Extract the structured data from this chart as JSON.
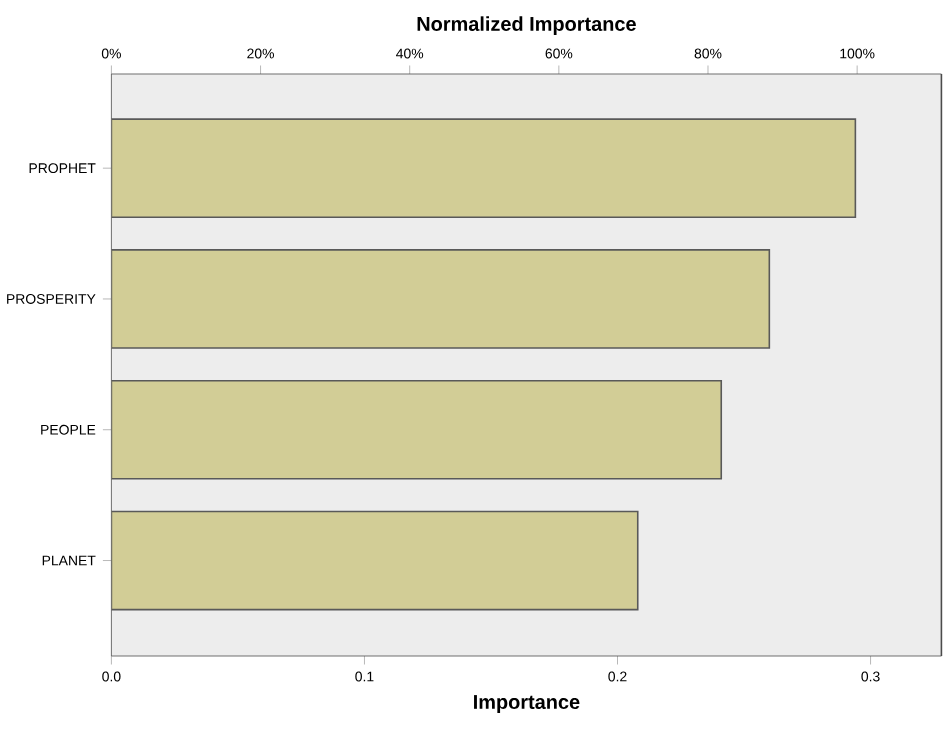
{
  "chart_data": {
    "type": "bar",
    "orientation": "horizontal",
    "x2label": "Normalized Importance",
    "xlabel": "Importance",
    "categories": [
      "PROPHET",
      "PROSPERITY",
      "PEOPLE",
      "PLANET"
    ],
    "values": [
      0.294,
      0.26,
      0.241,
      0.208
    ],
    "color": "#d2cd96",
    "xlim": [
      0,
      0.328
    ],
    "xticks": [
      {
        "value": 0,
        "label": "0.0"
      },
      {
        "value": 0.1,
        "label": "0.1"
      },
      {
        "value": 0.2,
        "label": "0.2"
      },
      {
        "value": 0.3,
        "label": "0.3"
      }
    ],
    "x2lim": [
      0,
      111.3
    ],
    "x2ticks": [
      {
        "value": 0,
        "label": "0%"
      },
      {
        "value": 20,
        "label": "20%"
      },
      {
        "value": 40,
        "label": "40%"
      },
      {
        "value": 60,
        "label": "60%"
      },
      {
        "value": 80,
        "label": "80%"
      },
      {
        "value": 100,
        "label": "100%"
      }
    ],
    "grid": false
  }
}
